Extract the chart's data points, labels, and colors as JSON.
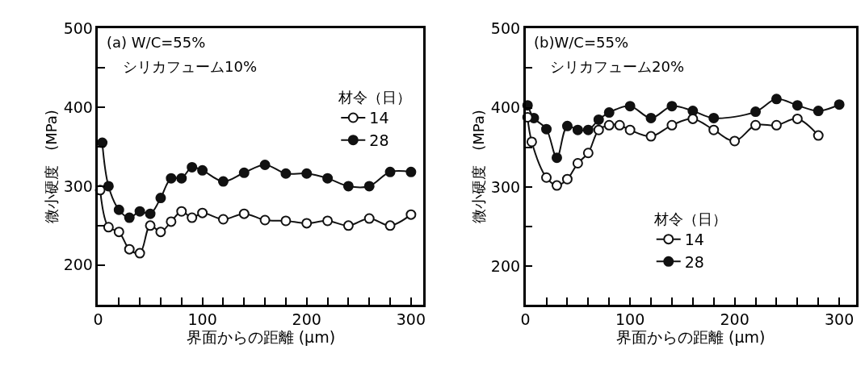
{
  "chart_data": [
    {
      "type": "line",
      "xlabel": "界面からの距離 (μm)",
      "ylabel": "微小硬度　(MPa)",
      "annotations": [
        "(a) W/C=55%",
        "シリカフューム10%"
      ],
      "legend_title": "材令（日）",
      "legend": "top right",
      "marker": "circle",
      "line_style": "solid",
      "xlim": [
        0,
        312
      ],
      "xticks": [
        0,
        {
          "value": 20,
          "label": null
        },
        {
          "value": 40,
          "label": null
        },
        {
          "value": 60,
          "label": null
        },
        {
          "value": 80,
          "label": null
        },
        100,
        {
          "value": 120,
          "label": null
        },
        {
          "value": 140,
          "label": null
        },
        {
          "value": 160,
          "label": null
        },
        {
          "value": 180,
          "label": null
        },
        200,
        {
          "value": 220,
          "label": null
        },
        {
          "value": 240,
          "label": null
        },
        {
          "value": 260,
          "label": null
        },
        {
          "value": 280,
          "label": null
        },
        300
      ],
      "ylim": [
        150,
        500
      ],
      "yticks": [
        200,
        {
          "value": 250,
          "label": null
        },
        300,
        {
          "value": 350,
          "label": null
        },
        400,
        {
          "value": 450,
          "label": null
        },
        500
      ],
      "series": [
        {
          "name": "14",
          "color": "#ffffff",
          "x": [
            2,
            10,
            20,
            30,
            40,
            50,
            60,
            70,
            80,
            90,
            100,
            120,
            140,
            160,
            180,
            200,
            220,
            240,
            260,
            280,
            300
          ],
          "values": [
            295,
            248,
            242,
            220,
            215,
            250,
            242,
            255,
            268,
            260,
            266,
            258,
            265,
            257,
            256,
            253,
            256,
            250,
            259,
            250,
            264
          ]
        },
        {
          "name": "28",
          "color": "#111111",
          "x": [
            4,
            10,
            20,
            30,
            40,
            50,
            60,
            70,
            80,
            90,
            100,
            120,
            140,
            160,
            180,
            200,
            220,
            240,
            260,
            280,
            300
          ],
          "values": [
            355,
            300,
            270,
            260,
            268,
            265,
            285,
            310,
            310,
            324,
            320,
            306,
            317,
            327,
            316,
            316,
            310,
            300,
            300,
            318,
            318
          ]
        }
      ]
    },
    {
      "type": "line",
      "xlabel": "界面からの距離 (μm)",
      "ylabel": "微小硬度　(MPa)",
      "annotations": [
        "(b)W/C=55%",
        "シリカフューム20%"
      ],
      "legend_title": "材令（日）",
      "legend": "bottom",
      "marker": "circle",
      "line_style": "solid",
      "xlim": [
        0,
        316
      ],
      "xticks": [
        0,
        {
          "value": 20,
          "label": null
        },
        {
          "value": 40,
          "label": null
        },
        {
          "value": 60,
          "label": null
        },
        {
          "value": 80,
          "label": null
        },
        100,
        {
          "value": 120,
          "label": null
        },
        {
          "value": 140,
          "label": null
        },
        {
          "value": 160,
          "label": null
        },
        {
          "value": 180,
          "label": null
        },
        200,
        {
          "value": 220,
          "label": null
        },
        {
          "value": 240,
          "label": null
        },
        {
          "value": 260,
          "label": null
        },
        {
          "value": 280,
          "label": null
        },
        300
      ],
      "ylim": [
        152,
        500
      ],
      "yticks": [
        200,
        {
          "value": 250,
          "label": null
        },
        300,
        {
          "value": 350,
          "label": null
        },
        400,
        {
          "value": 450,
          "label": null
        },
        500
      ],
      "series": [
        {
          "name": "14",
          "color": "#ffffff",
          "x": [
            2,
            6,
            20,
            30,
            40,
            50,
            60,
            70,
            80,
            90,
            100,
            120,
            140,
            160,
            180,
            200,
            220,
            240,
            260,
            280
          ],
          "values": [
            388,
            357,
            312,
            302,
            310,
            330,
            343,
            372,
            378,
            378,
            372,
            364,
            378,
            386,
            372,
            358,
            378,
            378,
            386,
            365
          ]
        },
        {
          "name": "28",
          "color": "#111111",
          "x": [
            2,
            8,
            20,
            30,
            40,
            50,
            60,
            70,
            80,
            100,
            120,
            140,
            160,
            180,
            220,
            240,
            260,
            280,
            300
          ],
          "values": [
            403,
            387,
            373,
            337,
            377,
            372,
            372,
            385,
            394,
            402,
            387,
            402,
            396,
            387,
            395,
            411,
            403,
            396,
            404
          ]
        }
      ]
    }
  ]
}
